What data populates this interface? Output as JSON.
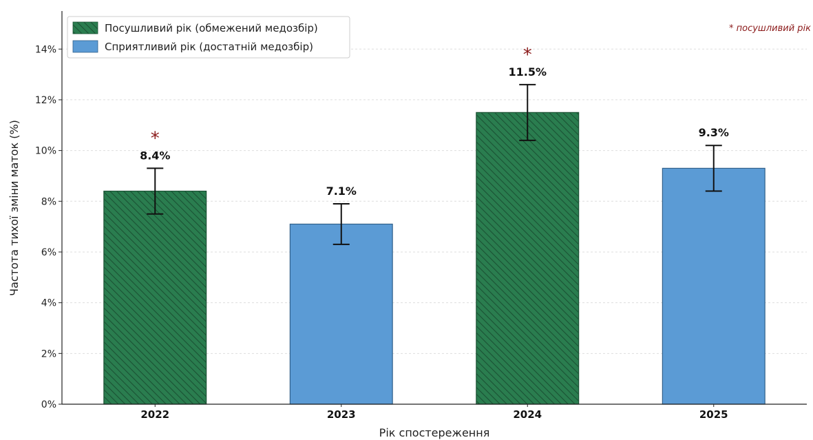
{
  "chart_data": {
    "type": "bar",
    "categories": [
      "2022",
      "2023",
      "2024",
      "2025"
    ],
    "values": [
      8.4,
      7.1,
      11.5,
      9.3
    ],
    "error_low": [
      7.5,
      6.3,
      10.4,
      8.4
    ],
    "error_high": [
      9.3,
      7.9,
      12.6,
      10.2
    ],
    "value_labels": [
      "8.4%",
      "7.1%",
      "11.5%",
      "9.3%"
    ],
    "drought": [
      true,
      false,
      true,
      false
    ],
    "series": [
      {
        "name": "Посушливий рік (обмежений медозбір)",
        "color": "#2a7d4f",
        "hatch": true
      },
      {
        "name": "Сприятливий рік (достатній медозбір)",
        "color": "#5b9bd5",
        "hatch": false
      }
    ],
    "title": "",
    "xlabel": "Рік спостереження",
    "ylabel": "Частота тихої зміни маток (%)",
    "ylim": [
      0,
      15.5
    ],
    "yticks": [
      0,
      2,
      4,
      6,
      8,
      10,
      12,
      14
    ],
    "ytick_labels": [
      "0%",
      "2%",
      "4%",
      "6%",
      "8%",
      "10%",
      "12%",
      "14%"
    ],
    "grid": true,
    "legend_position": "top-left",
    "significance_marker": "*",
    "annotation": "* посушливий рік"
  }
}
